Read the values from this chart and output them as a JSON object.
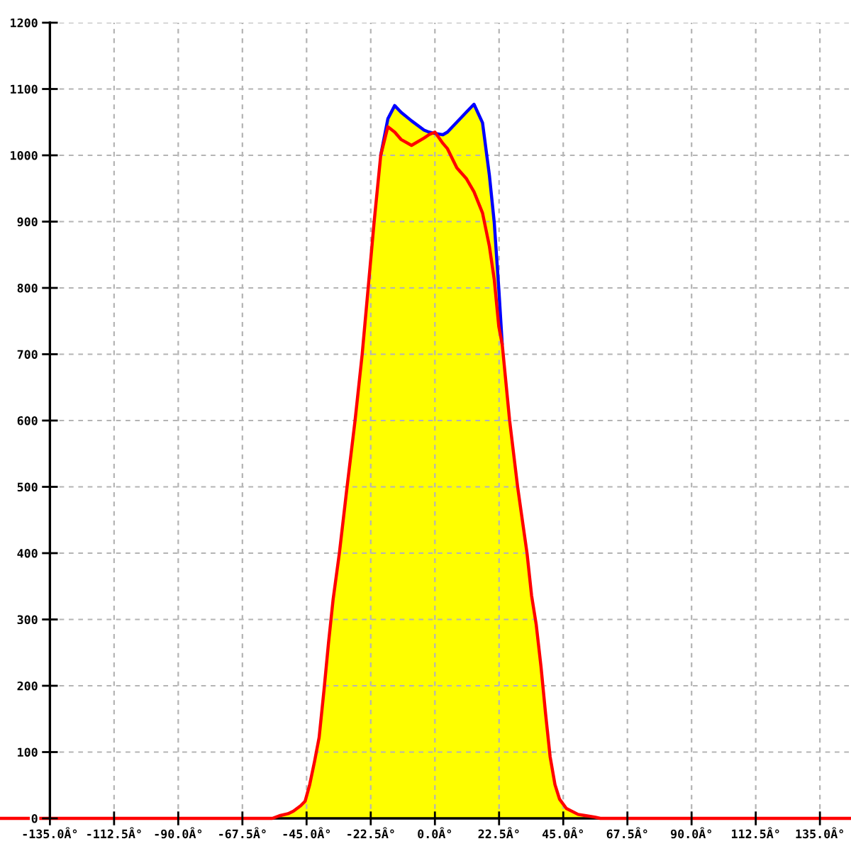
{
  "chart_data": {
    "type": "area",
    "x": [
      -152.5,
      -57,
      -54.5,
      -51.5,
      -49.6,
      -47.1,
      -45.5,
      -43.9,
      -42.2,
      -40.6,
      -38.9,
      -37.3,
      -35.7,
      -33.5,
      -30.8,
      -28,
      -25.5,
      -23.4,
      -21.3,
      -19,
      -16.5,
      -14.1,
      -11.9,
      -8.2,
      -3.8,
      -2.1,
      0,
      2.8,
      4.4,
      7.7,
      11,
      13.7,
      16.7,
      19.1,
      20.8,
      22.4,
      23.6,
      26.2,
      29,
      32.3,
      33.9,
      35.5,
      37.2,
      38.8,
      40.4,
      42.1,
      43.7,
      46.1,
      50.2,
      53,
      56,
      58,
      145.9
    ],
    "series": [
      {
        "color": "#ffff00",
        "values": [
          0,
          0,
          4,
          7,
          11,
          19,
          26,
          51,
          86,
          122,
          193,
          265,
          330,
          400,
          500,
          600,
          700,
          800,
          900,
          1000,
          1055,
          1075,
          1065,
          1052,
          1038,
          1035,
          1033,
          1031,
          1035,
          1050,
          1065,
          1077,
          1049,
          970,
          899,
          799,
          715,
          600,
          500,
          400,
          336,
          293,
          229,
          158,
          93,
          51,
          29,
          15,
          6,
          4,
          2,
          0,
          0
        ]
      },
      {
        "type": "line",
        "color": "#0000ff",
        "values": [
          null,
          null,
          null,
          null,
          null,
          null,
          null,
          null,
          null,
          null,
          null,
          null,
          null,
          null,
          null,
          null,
          null,
          null,
          null,
          1000,
          1055,
          1075,
          1065,
          1052,
          1038,
          1035,
          1033,
          1031,
          1035,
          1050,
          1065,
          1077,
          1049,
          970,
          899,
          799,
          715,
          null,
          null,
          null,
          null,
          null,
          null,
          null,
          null,
          null,
          null,
          null,
          null,
          null,
          null,
          null,
          null
        ]
      },
      {
        "type": "line",
        "color": "#ff0000",
        "values": [
          0,
          0,
          4,
          7,
          11,
          19,
          26,
          51,
          86,
          122,
          193,
          265,
          330,
          400,
          500,
          600,
          700,
          800,
          900,
          1000,
          1043,
          1035,
          1024,
          1015,
          1026,
          1031,
          1035,
          1018,
          1010,
          981,
          965,
          945,
          913,
          863,
          813,
          742,
          715,
          600,
          500,
          400,
          336,
          293,
          229,
          158,
          93,
          51,
          29,
          15,
          6,
          4,
          2,
          0,
          0
        ]
      }
    ],
    "xlim": [
      -152.5,
      145.9
    ],
    "ylim": [
      0,
      1200
    ],
    "xticks": [
      {
        "value": -135,
        "label": "-135.0Â°"
      },
      {
        "value": -112.5,
        "label": "-112.5Â°"
      },
      {
        "value": -90,
        "label": "-90.0Â°"
      },
      {
        "value": -67.5,
        "label": "-67.5Â°"
      },
      {
        "value": -45,
        "label": "-45.0Â°"
      },
      {
        "value": -22.5,
        "label": "-22.5Â°"
      },
      {
        "value": 0,
        "label": "0.0Â°"
      },
      {
        "value": 22.5,
        "label": "22.5Â°"
      },
      {
        "value": 45,
        "label": "45.0Â°"
      },
      {
        "value": 67.5,
        "label": "67.5Â°"
      },
      {
        "value": 90,
        "label": "90.0Â°"
      },
      {
        "value": 112.5,
        "label": "112.5Â°"
      },
      {
        "value": 135,
        "label": "135.0Â°"
      }
    ],
    "yticks": [
      0,
      100,
      200,
      300,
      400,
      500,
      600,
      700,
      800,
      900,
      1000,
      1100,
      1200
    ],
    "grid": true
  }
}
